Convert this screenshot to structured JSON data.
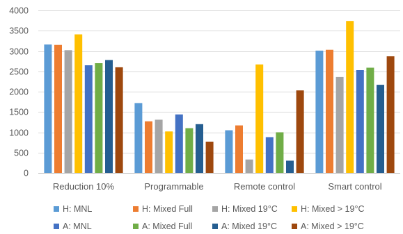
{
  "chart_data": {
    "type": "bar",
    "categories": [
      "Reduction 10%",
      "Programmable",
      "Remote control",
      "Smart control"
    ],
    "ylim": [
      0,
      4000
    ],
    "yticks": [
      0,
      500,
      1000,
      1500,
      2000,
      2500,
      3000,
      3500,
      4000
    ],
    "ytick_labels": [
      "0",
      "500",
      "1000",
      "1500",
      "2000",
      "2500",
      "3000",
      "3500",
      "4000"
    ],
    "grid": true,
    "legend_position": "bottom",
    "series": [
      {
        "name": "H: MNL",
        "color": "#5B9BD5",
        "values": [
          3160,
          1720,
          1050,
          3010
        ]
      },
      {
        "name": "H: Mixed Full",
        "color": "#ED7D31",
        "values": [
          3150,
          1270,
          1170,
          3030
        ]
      },
      {
        "name": "H: Mixed 19°C",
        "color": "#A5A5A5",
        "values": [
          3020,
          1310,
          330,
          2360
        ]
      },
      {
        "name": "H: Mixed > 19°C",
        "color": "#FFC000",
        "values": [
          3410,
          1020,
          2670,
          3740
        ]
      },
      {
        "name": "A: MNL",
        "color": "#4472C4",
        "values": [
          2650,
          1440,
          880,
          2530
        ]
      },
      {
        "name": "A: Mixed Full",
        "color": "#70AD47",
        "values": [
          2700,
          1100,
          1000,
          2590
        ]
      },
      {
        "name": "A: Mixed 19°C",
        "color": "#255E91",
        "values": [
          2780,
          1200,
          300,
          2170
        ]
      },
      {
        "name": "A: Mixed > 19°C",
        "color": "#9E480E",
        "values": [
          2600,
          770,
          2030,
          2870
        ]
      }
    ]
  }
}
